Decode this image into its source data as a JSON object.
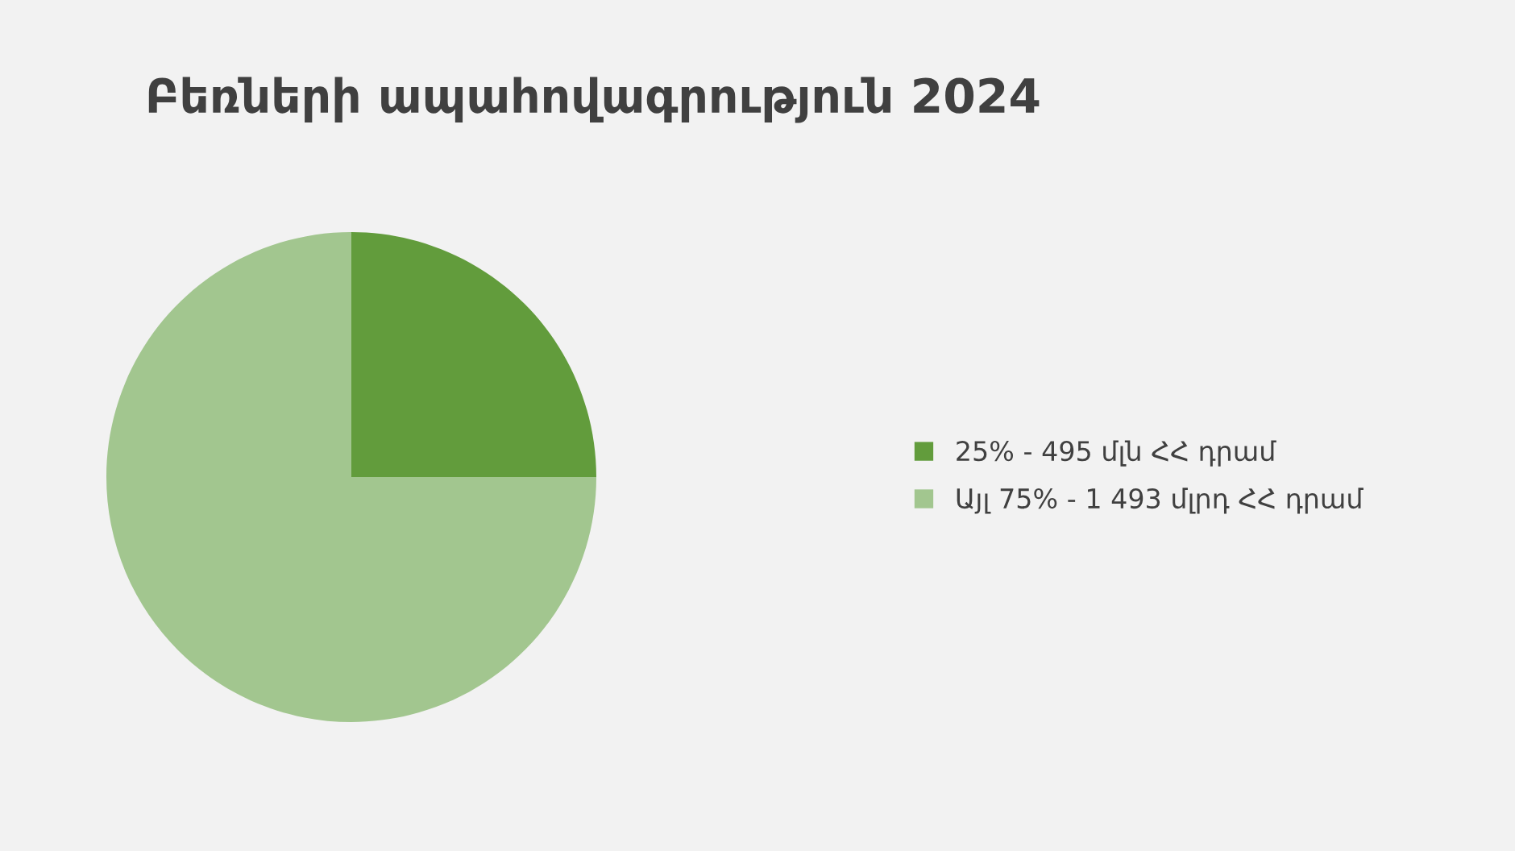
{
  "chart_data": {
    "type": "pie",
    "title": "Բեռների ապահովագրություն 2024",
    "categories": [
      "25% - 495 մլն ՀՀ դրամ",
      "Այլ 75% - 1 493 մլրդ ՀՀ դրամ"
    ],
    "values": [
      25,
      75
    ],
    "colors": [
      "#629c3c",
      "#a2c68f"
    ],
    "legend": "right"
  }
}
